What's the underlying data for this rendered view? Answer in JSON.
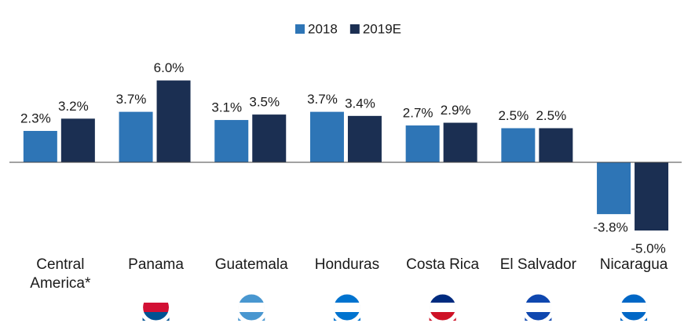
{
  "chart_data": {
    "type": "bar",
    "categories": [
      "Central America*",
      "Panama",
      "Guatemala",
      "Honduras",
      "Costa Rica",
      "El Salvador",
      "Nicaragua"
    ],
    "series": [
      {
        "name": "2018",
        "color": "#2e75b6",
        "values": [
          2.3,
          3.7,
          3.1,
          3.7,
          2.7,
          2.5,
          -3.8
        ],
        "value_labels": [
          "2.3%",
          "3.7%",
          "3.1%",
          "3.7%",
          "2.7%",
          "2.5%",
          "-3.8%"
        ]
      },
      {
        "name": "2019E",
        "color": "#1b2f52",
        "values": [
          3.2,
          6.0,
          3.5,
          3.4,
          2.9,
          2.5,
          -5.0
        ],
        "value_labels": [
          "3.2%",
          "6.0%",
          "3.5%",
          "3.4%",
          "2.9%",
          "2.5%",
          "-5.0%"
        ]
      }
    ],
    "legend": "top"
  }
}
